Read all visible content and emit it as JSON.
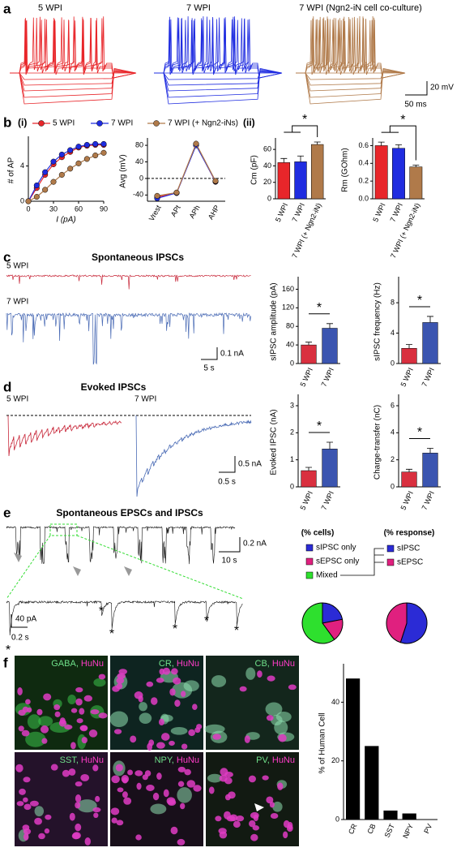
{
  "panel_labels": [
    "a",
    "b",
    "c",
    "d",
    "e",
    "f"
  ],
  "chart_data": [
    {
      "type": "trace",
      "titles": [
        "5 WPI",
        "7 WPI",
        "7 WPI (Ngn2-iN cell co-culture)"
      ],
      "colors": [
        "#e8262a",
        "#1f2ce0",
        "#b07a4a"
      ],
      "scale_labels": [
        "20 mV",
        "50 ms"
      ]
    },
    {
      "type": "line",
      "label": "(i)",
      "xlabel": "I (pA)",
      "ylabel": "# of AP",
      "x": [
        0,
        10,
        20,
        30,
        40,
        50,
        60,
        70,
        80,
        90
      ],
      "xlim": [
        0,
        90
      ],
      "xticks": [
        0,
        30,
        60,
        90
      ],
      "ylim": [
        0,
        7
      ],
      "yticks": [
        0,
        4
      ],
      "series": [
        {
          "name": "5 WPI",
          "color": "#e8262a",
          "values": [
            0,
            1.5,
            3,
            4.2,
            5,
            5.6,
            6.1,
            6.3,
            6.4,
            6.4
          ]
        },
        {
          "name": "7 WPI",
          "color": "#1f2ce0",
          "values": [
            0,
            1.8,
            3.3,
            4.5,
            5.3,
            5.8,
            6.2,
            6.4,
            6.5,
            6.5
          ]
        },
        {
          "name": "7 WPI (+ Ngn2-iNs)",
          "color": "#b07a4a",
          "values": [
            0,
            0.5,
            1.3,
            2.2,
            3,
            3.7,
            4.3,
            4.8,
            5.2,
            5.5
          ]
        }
      ]
    },
    {
      "type": "line",
      "ylabel": "Avg (mV)",
      "categories": [
        "Vrest",
        "APt",
        "APh",
        "AHP"
      ],
      "ylim": [
        -55,
        90
      ],
      "yticks": [
        -40,
        0,
        40,
        80
      ],
      "zero_line": true,
      "series": [
        {
          "color": "#e8262a",
          "values": [
            -45,
            -35,
            82,
            -8
          ]
        },
        {
          "color": "#1f2ce0",
          "values": [
            -48,
            -35,
            80,
            -7
          ]
        },
        {
          "color": "#b07a4a",
          "values": [
            -42,
            -34,
            84,
            -6
          ]
        }
      ]
    },
    {
      "type": "bar",
      "label": "(ii)",
      "ylabel": "Cm (pF)",
      "categories": [
        "5 WPI",
        "7 WPI",
        "7 WPI (+ Ngn2-iN)"
      ],
      "colors": [
        "#e8262a",
        "#1f2ce0",
        "#b07a4a"
      ],
      "values": [
        44,
        45,
        66
      ],
      "errors": [
        5,
        7,
        3
      ],
      "ylim": [
        0,
        70
      ],
      "yticks": [
        0,
        20,
        40,
        60
      ],
      "colored_labels": true,
      "annotation": "*"
    },
    {
      "type": "bar",
      "ylabel": "Rm (GOhm)",
      "categories": [
        "5 WPI",
        "7 WPI",
        "7 WPI (+ Ngn2-iN)"
      ],
      "colors": [
        "#e8262a",
        "#1f2ce0",
        "#b07a4a"
      ],
      "values": [
        0.6,
        0.57,
        0.36
      ],
      "errors": [
        0.04,
        0.04,
        0.02
      ],
      "ylim": [
        0,
        0.65
      ],
      "yticks": [
        {
          "value": 0,
          "label": "0.0"
        },
        0.2,
        0.4,
        0.6
      ],
      "colored_labels": true,
      "annotation": "*"
    },
    {
      "type": "trace",
      "title": "Spontaneous IPSCs",
      "trace_labels": [
        "5 WPI",
        "7 WPI"
      ],
      "colors": [
        "#c8283a",
        "#4a6bb5"
      ],
      "scale_labels": [
        "0.1 nA",
        "5 s"
      ]
    },
    {
      "type": "bar",
      "ylabel": "sIPSC amplitude (pA)",
      "categories": [
        "5 WPI",
        "7 WPI"
      ],
      "colors": [
        "#d9303f",
        "#3b55b0"
      ],
      "values": [
        40,
        76
      ],
      "errors": [
        6,
        10
      ],
      "ylim": [
        0,
        180
      ],
      "yticks": [
        0,
        40,
        80,
        120,
        160
      ],
      "annotation": "*"
    },
    {
      "type": "bar",
      "ylabel": "sIPSC frequency (Hz)",
      "categories": [
        "5 WPI",
        "7 WPI"
      ],
      "colors": [
        "#d9303f",
        "#3b55b0"
      ],
      "values": [
        2,
        5.4
      ],
      "errors": [
        0.5,
        0.8
      ],
      "ylim": [
        0,
        11
      ],
      "yticks": [
        0,
        4,
        8
      ],
      "annotation": "*"
    },
    {
      "type": "trace",
      "title": "Evoked IPSCs",
      "trace_labels": [
        "5 WPI",
        "7 WPI"
      ],
      "colors": [
        "#c8283a",
        "#4a6bb5"
      ],
      "scale_labels": [
        "0.5 nA",
        "0.5 s"
      ]
    },
    {
      "type": "bar",
      "ylabel": "Evoked IPSC (nA)",
      "categories": [
        "5 WPI",
        "7 WPI"
      ],
      "colors": [
        "#d9303f",
        "#3b55b0"
      ],
      "values": [
        0.6,
        1.4
      ],
      "errors": [
        0.12,
        0.25
      ],
      "ylim": [
        0,
        3.3
      ],
      "yticks": [
        0,
        1,
        2,
        3
      ],
      "annotation": "*"
    },
    {
      "type": "bar",
      "ylabel": "Charge-transfer (nC)",
      "categories": [
        "5 WPI",
        "7 WPI"
      ],
      "colors": [
        "#d9303f",
        "#3b55b0"
      ],
      "values": [
        1.1,
        2.5
      ],
      "errors": [
        0.2,
        0.35
      ],
      "ylim": [
        0,
        6.6
      ],
      "yticks": [
        0,
        2,
        4,
        6
      ],
      "annotation": "*"
    },
    {
      "type": "trace",
      "title": "Spontaneous EPSCs and IPSCs",
      "scale_labels": [
        "0.2 nA",
        "10 s",
        "40 pA",
        "0.2 s"
      ],
      "ipsc_mark": "*",
      "epsc_mark": "*",
      "colors": [
        "#111111",
        "#2222cc",
        "#e0207f",
        "#33dd33"
      ]
    },
    {
      "type": "pie",
      "title": "(% cells)",
      "categories": [
        "sIPSC only",
        "sEPSC only",
        "Mixed"
      ],
      "values": [
        22,
        18,
        60
      ],
      "colors": [
        "#2b2bd6",
        "#e0207f",
        "#2ee02e"
      ]
    },
    {
      "type": "pie",
      "title": "(% response)",
      "categories": [
        "sIPSC",
        "sEPSC"
      ],
      "values": [
        55,
        45
      ],
      "colors": [
        "#2b2bd6",
        "#e0207f"
      ]
    },
    {
      "type": "image",
      "panels": [
        {
          "marker": "GABA,",
          "stain": "HuNu"
        },
        {
          "marker": "CR,",
          "stain": "HuNu"
        },
        {
          "marker": "CB,",
          "stain": "HuNu"
        },
        {
          "marker": "SST,",
          "stain": "HuNu"
        },
        {
          "marker": "NPY,",
          "stain": "HuNu"
        },
        {
          "marker": "PV,",
          "stain": "HuNu"
        }
      ],
      "marker_color": "#6fe08a",
      "stain_color": "#ff3cc8"
    },
    {
      "type": "bar",
      "ylabel": "% of Human Cell",
      "categories": [
        "CR",
        "CB",
        "SST",
        "NPY",
        "PV"
      ],
      "values": [
        48,
        25,
        3,
        2,
        0
      ],
      "color": "#000000",
      "ylim": [
        0,
        52
      ],
      "yticks": [
        0,
        20,
        40
      ]
    }
  ]
}
